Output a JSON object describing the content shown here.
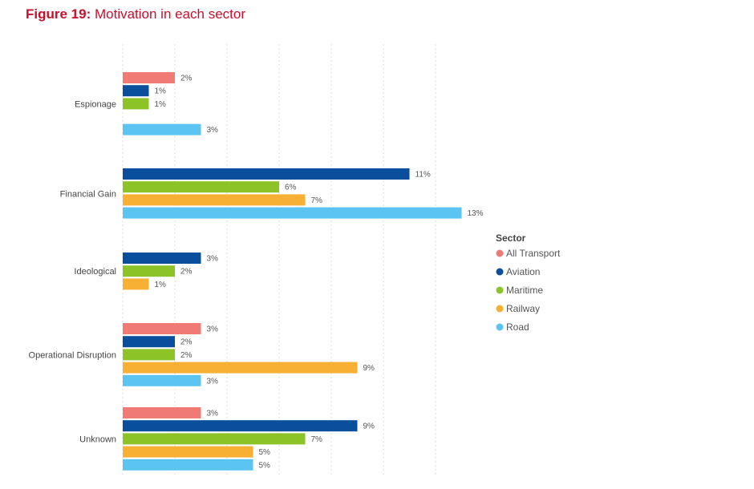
{
  "figure": {
    "number": "Figure 19:",
    "title": "Motivation in each sector"
  },
  "chart_data": {
    "type": "bar",
    "orientation": "horizontal",
    "categories": [
      "Espionage",
      "Financial Gain",
      "Ideological",
      "Operational Disruption",
      "Unknown"
    ],
    "series": [
      {
        "name": "All Transport",
        "color": "#f07a74",
        "values": [
          2,
          null,
          null,
          3,
          3
        ]
      },
      {
        "name": "Aviation",
        "color": "#0a4f9c",
        "values": [
          1,
          11,
          3,
          2,
          9
        ]
      },
      {
        "name": "Maritime",
        "color": "#8cc326",
        "values": [
          1,
          6,
          2,
          2,
          7
        ]
      },
      {
        "name": "Railway",
        "color": "#f7b033",
        "values": [
          null,
          7,
          1,
          9,
          5
        ]
      },
      {
        "name": "Road",
        "color": "#5bc4f1",
        "values": [
          3,
          13,
          null,
          3,
          5
        ]
      }
    ],
    "value_suffix": "%",
    "legend_title": "Sector",
    "legend_position": "right",
    "xlim": [
      0,
      13
    ],
    "grid": "vertical dotted"
  }
}
